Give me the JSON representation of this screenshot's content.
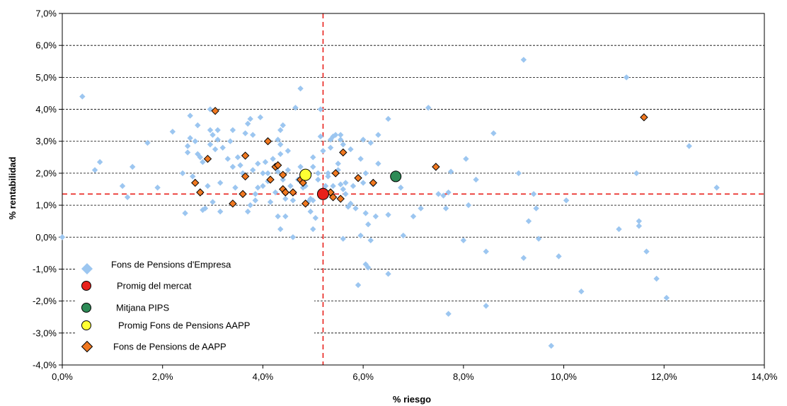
{
  "chart_data": {
    "type": "scatter",
    "xlabel": "% riesgo",
    "ylabel": "% rentabilidad",
    "xlim": [
      0,
      14
    ],
    "ylim": [
      -4,
      7
    ],
    "x_ticks": [
      0,
      2,
      4,
      6,
      8,
      10,
      12,
      14
    ],
    "y_ticks": [
      -4,
      -3,
      -2,
      -1,
      0,
      1,
      2,
      3,
      4,
      5,
      6,
      7
    ],
    "x_tick_labels": [
      "0,0%",
      "2,0%",
      "4,0%",
      "6,0%",
      "8,0%",
      "10,0%",
      "12,0%",
      "14,0%"
    ],
    "y_tick_labels": [
      "-4,0%",
      "-3,0%",
      "-2,0%",
      "-1,0%",
      "0,0%",
      "1,0%",
      "2,0%",
      "3,0%",
      "4,0%",
      "5,0%",
      "6,0%",
      "7,0%"
    ],
    "grid": "horizontal dashed",
    "legend_position": "bottom-left inside",
    "reference_lines": {
      "vertical_x": 5.2,
      "horizontal_y": 1.35,
      "color": "#e8201b"
    },
    "series": [
      {
        "name": "Fons de Pensions d'Empresa",
        "marker": "diamond",
        "color": "#9cc6f0",
        "points": [
          [
            0.0,
            0.0
          ],
          [
            0.4,
            4.4
          ],
          [
            0.65,
            2.1
          ],
          [
            0.75,
            2.35
          ],
          [
            1.2,
            1.6
          ],
          [
            1.3,
            1.25
          ],
          [
            1.4,
            2.2
          ],
          [
            1.7,
            2.95
          ],
          [
            1.9,
            1.55
          ],
          [
            2.2,
            3.3
          ],
          [
            2.4,
            2.0
          ],
          [
            2.45,
            0.75
          ],
          [
            2.5,
            2.65
          ],
          [
            2.5,
            2.85
          ],
          [
            2.55,
            3.8
          ],
          [
            2.55,
            3.1
          ],
          [
            2.6,
            1.9
          ],
          [
            2.65,
            3.0
          ],
          [
            2.7,
            2.6
          ],
          [
            2.7,
            3.5
          ],
          [
            2.75,
            2.5
          ],
          [
            2.8,
            2.35
          ],
          [
            2.8,
            0.85
          ],
          [
            2.85,
            0.9
          ],
          [
            2.9,
            1.6
          ],
          [
            2.95,
            2.9
          ],
          [
            2.95,
            3.35
          ],
          [
            2.95,
            4.0
          ],
          [
            3.0,
            3.2
          ],
          [
            3.0,
            1.1
          ],
          [
            3.05,
            2.75
          ],
          [
            3.1,
            3.05
          ],
          [
            3.1,
            3.35
          ],
          [
            3.15,
            1.7
          ],
          [
            3.15,
            0.8
          ],
          [
            3.2,
            2.8
          ],
          [
            3.3,
            2.45
          ],
          [
            3.35,
            3.0
          ],
          [
            3.4,
            3.35
          ],
          [
            3.4,
            2.2
          ],
          [
            3.45,
            1.55
          ],
          [
            3.5,
            2.5
          ],
          [
            3.55,
            2.25
          ],
          [
            3.6,
            2.0
          ],
          [
            3.65,
            1.9
          ],
          [
            3.65,
            3.25
          ],
          [
            3.7,
            3.55
          ],
          [
            3.7,
            0.8
          ],
          [
            3.75,
            1.0
          ],
          [
            3.75,
            3.7
          ],
          [
            3.8,
            3.2
          ],
          [
            3.8,
            2.1
          ],
          [
            3.85,
            1.35
          ],
          [
            3.85,
            1.15
          ],
          [
            3.9,
            1.55
          ],
          [
            3.9,
            2.3
          ],
          [
            3.95,
            3.75
          ],
          [
            4.0,
            2.0
          ],
          [
            4.0,
            1.6
          ],
          [
            4.05,
            2.35
          ],
          [
            4.1,
            2.0
          ],
          [
            4.1,
            1.75
          ],
          [
            4.15,
            1.1
          ],
          [
            4.2,
            2.45
          ],
          [
            4.25,
            1.4
          ],
          [
            4.3,
            2.05
          ],
          [
            4.3,
            0.65
          ],
          [
            4.3,
            3.05
          ],
          [
            4.35,
            2.6
          ],
          [
            4.35,
            2.9
          ],
          [
            4.35,
            3.35
          ],
          [
            4.35,
            0.25
          ],
          [
            4.4,
            1.8
          ],
          [
            4.4,
            3.5
          ],
          [
            4.45,
            0.65
          ],
          [
            4.45,
            1.2
          ],
          [
            4.5,
            2.1
          ],
          [
            4.5,
            2.7
          ],
          [
            4.55,
            1.6
          ],
          [
            4.6,
            1.15
          ],
          [
            4.6,
            0.0
          ],
          [
            4.65,
            4.05
          ],
          [
            4.7,
            1.8
          ],
          [
            4.75,
            2.2
          ],
          [
            4.75,
            4.65
          ],
          [
            4.8,
            1.55
          ],
          [
            4.85,
            1.6
          ],
          [
            4.9,
            1.1
          ],
          [
            4.95,
            1.2
          ],
          [
            4.95,
            0.8
          ],
          [
            5.0,
            2.5
          ],
          [
            5.0,
            2.2
          ],
          [
            5.0,
            1.15
          ],
          [
            5.0,
            0.25
          ],
          [
            5.05,
            0.6
          ],
          [
            5.1,
            2.0
          ],
          [
            5.1,
            1.8
          ],
          [
            5.15,
            3.15
          ],
          [
            5.15,
            4.0
          ],
          [
            5.2,
            2.7
          ],
          [
            5.25,
            1.6
          ],
          [
            5.3,
            2.0
          ],
          [
            5.3,
            1.9
          ],
          [
            5.35,
            3.05
          ],
          [
            5.35,
            2.8
          ],
          [
            5.4,
            1.6
          ],
          [
            5.4,
            3.15
          ],
          [
            5.45,
            3.2
          ],
          [
            5.5,
            2.3
          ],
          [
            5.5,
            2.1
          ],
          [
            5.55,
            3.05
          ],
          [
            5.55,
            3.2
          ],
          [
            5.55,
            1.65
          ],
          [
            5.6,
            2.9
          ],
          [
            5.6,
            1.5
          ],
          [
            5.6,
            -0.05
          ],
          [
            5.65,
            1.35
          ],
          [
            5.65,
            1.7
          ],
          [
            5.7,
            0.95
          ],
          [
            5.75,
            2.75
          ],
          [
            5.75,
            1.05
          ],
          [
            5.8,
            1.6
          ],
          [
            5.85,
            0.9
          ],
          [
            5.9,
            1.85
          ],
          [
            5.9,
            -1.5
          ],
          [
            5.95,
            2.45
          ],
          [
            5.95,
            0.05
          ],
          [
            6.0,
            3.05
          ],
          [
            6.0,
            1.7
          ],
          [
            6.05,
            2.0
          ],
          [
            6.05,
            0.75
          ],
          [
            6.05,
            -0.85
          ],
          [
            6.1,
            -0.95
          ],
          [
            6.1,
            0.4
          ],
          [
            6.15,
            2.95
          ],
          [
            6.15,
            -0.1
          ],
          [
            6.2,
            1.65
          ],
          [
            6.25,
            0.65
          ],
          [
            6.3,
            2.3
          ],
          [
            6.3,
            3.2
          ],
          [
            6.5,
            -1.15
          ],
          [
            6.5,
            0.7
          ],
          [
            6.5,
            3.7
          ],
          [
            6.65,
            2.0
          ],
          [
            6.75,
            1.55
          ],
          [
            6.8,
            0.05
          ],
          [
            7.0,
            0.65
          ],
          [
            7.15,
            0.9
          ],
          [
            7.3,
            4.05
          ],
          [
            7.5,
            1.35
          ],
          [
            7.6,
            1.3
          ],
          [
            7.65,
            0.9
          ],
          [
            7.7,
            1.4
          ],
          [
            7.7,
            -2.4
          ],
          [
            7.75,
            2.05
          ],
          [
            8.0,
            -0.1
          ],
          [
            8.05,
            2.45
          ],
          [
            8.1,
            1.0
          ],
          [
            8.25,
            1.8
          ],
          [
            8.45,
            -0.45
          ],
          [
            8.45,
            -2.15
          ],
          [
            8.6,
            3.25
          ],
          [
            9.1,
            2.0
          ],
          [
            9.2,
            5.55
          ],
          [
            9.2,
            -0.65
          ],
          [
            9.3,
            0.5
          ],
          [
            9.4,
            1.35
          ],
          [
            9.45,
            0.9
          ],
          [
            9.5,
            -0.05
          ],
          [
            9.75,
            -3.4
          ],
          [
            9.9,
            -0.6
          ],
          [
            10.05,
            1.15
          ],
          [
            10.35,
            -1.7
          ],
          [
            11.1,
            0.25
          ],
          [
            11.25,
            5.0
          ],
          [
            11.45,
            2.0
          ],
          [
            11.5,
            0.5
          ],
          [
            11.5,
            0.35
          ],
          [
            11.65,
            -0.45
          ],
          [
            11.85,
            -1.3
          ],
          [
            12.05,
            -1.9
          ],
          [
            12.5,
            2.85
          ],
          [
            13.05,
            1.55
          ]
        ]
      },
      {
        "name": "Promig del mercat",
        "marker": "circle",
        "color": "#e8201b",
        "points": [
          [
            5.2,
            1.35
          ]
        ]
      },
      {
        "name": "Mitjana PIPS",
        "marker": "circle",
        "color": "#2e8b57",
        "points": [
          [
            6.65,
            1.9
          ]
        ]
      },
      {
        "name": "Promig Fons de Pensions AAPP",
        "marker": "circle",
        "color": "#ffff33",
        "points": [
          [
            4.85,
            1.95
          ]
        ]
      },
      {
        "name": "Fons de Pensions de AAPP",
        "marker": "diamond",
        "color": "#f07820",
        "points": [
          [
            2.65,
            1.7
          ],
          [
            2.75,
            1.4
          ],
          [
            2.9,
            2.45
          ],
          [
            3.05,
            3.95
          ],
          [
            3.4,
            1.05
          ],
          [
            3.6,
            1.35
          ],
          [
            3.65,
            1.9
          ],
          [
            3.65,
            2.55
          ],
          [
            4.1,
            3.0
          ],
          [
            4.15,
            1.8
          ],
          [
            4.25,
            2.2
          ],
          [
            4.3,
            2.25
          ],
          [
            4.4,
            1.5
          ],
          [
            4.4,
            1.95
          ],
          [
            4.45,
            1.4
          ],
          [
            4.6,
            1.4
          ],
          [
            4.75,
            1.8
          ],
          [
            4.8,
            1.7
          ],
          [
            4.85,
            1.05
          ],
          [
            5.35,
            1.4
          ],
          [
            5.4,
            1.25
          ],
          [
            5.45,
            2.0
          ],
          [
            5.55,
            1.2
          ],
          [
            5.6,
            2.65
          ],
          [
            5.9,
            1.85
          ],
          [
            6.2,
            1.7
          ],
          [
            7.45,
            2.2
          ],
          [
            11.6,
            3.75
          ]
        ]
      }
    ]
  }
}
